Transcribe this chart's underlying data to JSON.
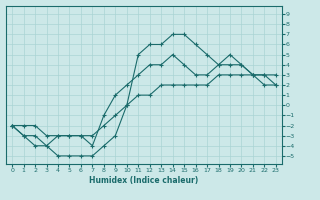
{
  "xlabel": "Humidex (Indice chaleur)",
  "bg_color": "#cce8e8",
  "line_color": "#1a6b6b",
  "grid_color": "#aad4d4",
  "xlim": [
    -0.5,
    23.5
  ],
  "ylim": [
    -5.8,
    9.8
  ],
  "xticks": [
    0,
    1,
    2,
    3,
    4,
    5,
    6,
    7,
    8,
    9,
    10,
    11,
    12,
    13,
    14,
    15,
    16,
    17,
    18,
    19,
    20,
    21,
    22,
    23
  ],
  "yticks": [
    9,
    8,
    7,
    6,
    5,
    4,
    3,
    2,
    1,
    0,
    -1,
    -2,
    -3,
    -4,
    -5
  ],
  "line1_x": [
    0,
    1,
    2,
    3,
    4,
    5,
    6,
    7,
    8,
    9,
    10,
    11,
    12,
    13,
    14,
    15,
    16,
    17,
    18,
    19,
    20,
    21,
    22,
    23
  ],
  "line1_y": [
    -2,
    -3,
    -4,
    -4,
    -5,
    -5,
    -5,
    -5,
    -4,
    -3,
    0,
    5,
    6,
    6,
    7,
    7,
    6,
    5,
    4,
    5,
    4,
    3,
    2,
    2
  ],
  "line2_x": [
    0,
    1,
    2,
    3,
    4,
    5,
    6,
    7,
    8,
    9,
    10,
    11,
    12,
    13,
    14,
    15,
    16,
    17,
    18,
    19,
    20,
    21,
    22,
    23
  ],
  "line2_y": [
    -2,
    -3,
    -3,
    -4,
    -3,
    -3,
    -3,
    -4,
    -1,
    1,
    2,
    3,
    4,
    4,
    5,
    4,
    3,
    3,
    4,
    4,
    4,
    3,
    3,
    2
  ],
  "line3_x": [
    0,
    1,
    2,
    3,
    4,
    5,
    6,
    7,
    8,
    9,
    10,
    11,
    12,
    13,
    14,
    15,
    16,
    17,
    18,
    19,
    20,
    21,
    22,
    23
  ],
  "line3_y": [
    -2,
    -2,
    -2,
    -3,
    -3,
    -3,
    -3,
    -3,
    -2,
    -1,
    0,
    1,
    1,
    2,
    2,
    2,
    2,
    2,
    3,
    3,
    3,
    3,
    3,
    3
  ]
}
